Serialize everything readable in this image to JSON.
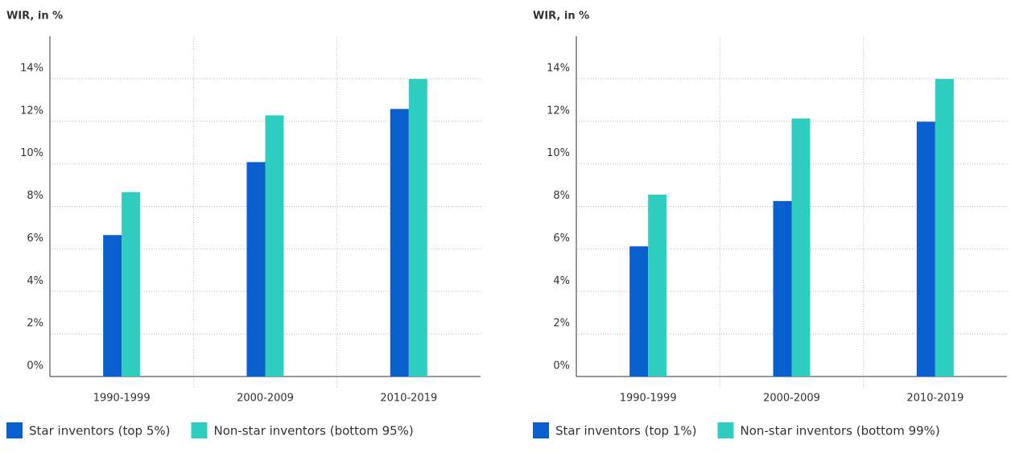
{
  "chart_data": [
    {
      "type": "bar",
      "y_label": "WIR, in %",
      "categories": [
        "1990-1999",
        "2000-2009",
        "2010-2019"
      ],
      "series": [
        {
          "name": "Star inventors (top 5%)",
          "color": "#0a5fcf",
          "values": [
            6.65,
            10.08,
            12.58
          ]
        },
        {
          "name": "Non-star inventors (bottom 95%)",
          "color": "#2fcdbf",
          "values": [
            8.67,
            12.28,
            13.99
          ]
        }
      ],
      "ylim": [
        0,
        16
      ],
      "yticks": [
        {
          "value": 0,
          "label": "0%"
        },
        {
          "value": 2,
          "label": "2%"
        },
        {
          "value": 4,
          "label": "4%"
        },
        {
          "value": 6,
          "label": "6%"
        },
        {
          "value": 8,
          "label": "8%"
        },
        {
          "value": 10,
          "label": "10%"
        },
        {
          "value": 12,
          "label": "12%"
        },
        {
          "value": 14,
          "label": "14%"
        }
      ],
      "grid": true
    },
    {
      "type": "bar",
      "y_label": "WIR, in %",
      "categories": [
        "1990-1999",
        "2000-2009",
        "2010-2019"
      ],
      "series": [
        {
          "name": "Star inventors (top 1%)",
          "color": "#0a5fcf",
          "values": [
            6.12,
            8.25,
            11.98
          ]
        },
        {
          "name": "Non-star inventors (bottom 99%)",
          "color": "#2fcdbf",
          "values": [
            8.55,
            12.13,
            13.99
          ]
        }
      ],
      "ylim": [
        0,
        16
      ],
      "yticks": [
        {
          "value": 0,
          "label": "0%"
        },
        {
          "value": 2,
          "label": "2%"
        },
        {
          "value": 4,
          "label": "4%"
        },
        {
          "value": 6,
          "label": "6%"
        },
        {
          "value": 8,
          "label": "8%"
        },
        {
          "value": 10,
          "label": "10%"
        },
        {
          "value": 12,
          "label": "12%"
        },
        {
          "value": 14,
          "label": "14%"
        }
      ],
      "grid": true
    }
  ]
}
